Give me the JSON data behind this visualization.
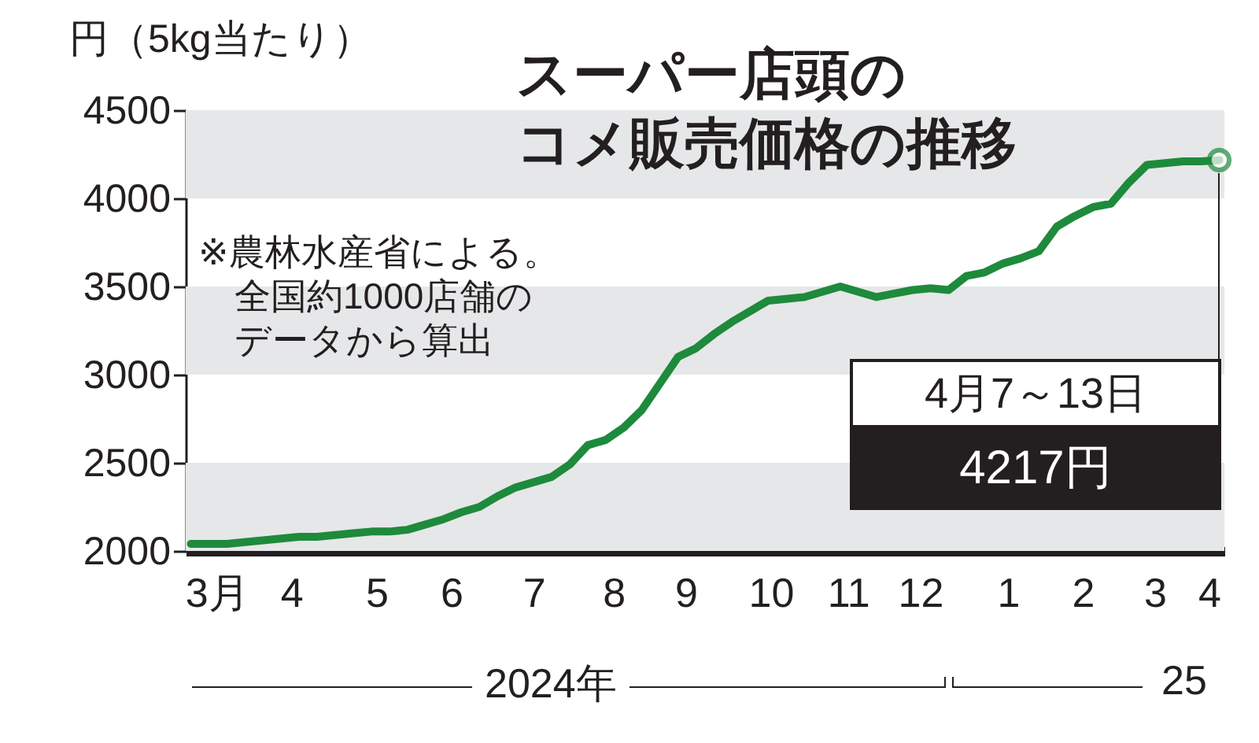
{
  "chart_data": {
    "type": "line",
    "title": "スーパー店頭のコメ販売価格の推移",
    "ylabel": "円（5kg当たり）",
    "x": [
      "2024-03-04",
      "2024-03-11",
      "2024-03-18",
      "2024-03-25",
      "2024-04-01",
      "2024-04-08",
      "2024-04-15",
      "2024-04-22",
      "2024-04-29",
      "2024-05-06",
      "2024-05-13",
      "2024-05-20",
      "2024-05-27",
      "2024-06-03",
      "2024-06-10",
      "2024-06-17",
      "2024-06-24",
      "2024-07-01",
      "2024-07-08",
      "2024-07-15",
      "2024-07-22",
      "2024-07-29",
      "2024-08-05",
      "2024-08-12",
      "2024-08-19",
      "2024-08-26",
      "2024-09-02",
      "2024-09-09",
      "2024-09-16",
      "2024-09-23",
      "2024-09-30",
      "2024-10-07",
      "2024-10-14",
      "2024-10-21",
      "2024-10-28",
      "2024-11-04",
      "2024-11-11",
      "2024-11-18",
      "2024-11-25",
      "2024-12-02",
      "2024-12-09",
      "2024-12-16",
      "2024-12-23",
      "2024-12-30",
      "2025-01-06",
      "2025-01-13",
      "2025-01-20",
      "2025-01-27",
      "2025-02-03",
      "2025-02-10",
      "2025-02-17",
      "2025-02-24",
      "2025-03-03",
      "2025-03-10",
      "2025-03-17",
      "2025-03-24",
      "2025-03-31",
      "2025-04-07"
    ],
    "series": [
      {
        "color": "#1e8a3c",
        "values": [
          2040,
          2040,
          2040,
          2050,
          2060,
          2070,
          2080,
          2080,
          2090,
          2100,
          2110,
          2110,
          2120,
          2150,
          2180,
          2220,
          2250,
          2310,
          2360,
          2390,
          2420,
          2490,
          2600,
          2630,
          2700,
          2800,
          2950,
          3100,
          3150,
          3230,
          3300,
          3360,
          3420,
          3430,
          3440,
          3470,
          3500,
          3470,
          3440,
          3460,
          3480,
          3490,
          3480,
          3560,
          3580,
          3630,
          3660,
          3700,
          3840,
          3900,
          3950,
          3970,
          4090,
          4190,
          4200,
          4210,
          4210,
          4217
        ]
      }
    ],
    "xlim": [
      "2024-03-02",
      "2025-04-09"
    ],
    "xticks": [
      {
        "value": "2024-03-14",
        "label": "3月"
      },
      {
        "value": "2024-04-12",
        "label": "4"
      },
      {
        "value": "2024-05-15",
        "label": "5"
      },
      {
        "value": "2024-06-13",
        "label": "6"
      },
      {
        "value": "2024-07-15",
        "label": "7"
      },
      {
        "value": "2024-08-15",
        "label": "8"
      },
      {
        "value": "2024-09-12",
        "label": "9"
      },
      {
        "value": "2024-10-15",
        "label": "10"
      },
      {
        "value": "2024-11-14",
        "label": "11"
      },
      {
        "value": "2024-12-12",
        "label": "12"
      },
      {
        "value": "2025-01-15",
        "label": "1"
      },
      {
        "value": "2025-02-13",
        "label": "2"
      },
      {
        "value": "2025-03-13",
        "label": "3"
      },
      {
        "value": "2025-04-03",
        "label": "4"
      }
    ],
    "ylim": [
      2000,
      4500
    ],
    "yticks": [
      2000,
      2500,
      3000,
      3500,
      4000,
      4500
    ],
    "bands": [
      {
        "axis": "y",
        "from": 2000,
        "to": 2500,
        "color": "#e6e7e8"
      },
      {
        "axis": "y",
        "from": 3000,
        "to": 3500,
        "color": "#e6e7e8"
      },
      {
        "axis": "y",
        "from": 4000,
        "to": 4500,
        "color": "#e6e7e8"
      }
    ],
    "marker": "none",
    "line_style": "solid",
    "annotations": [
      "※農林水産省による。",
      "全国約1000店舗の",
      "データから算出",
      "4月7～13日",
      "4217円",
      "2024年",
      "25"
    ]
  }
}
